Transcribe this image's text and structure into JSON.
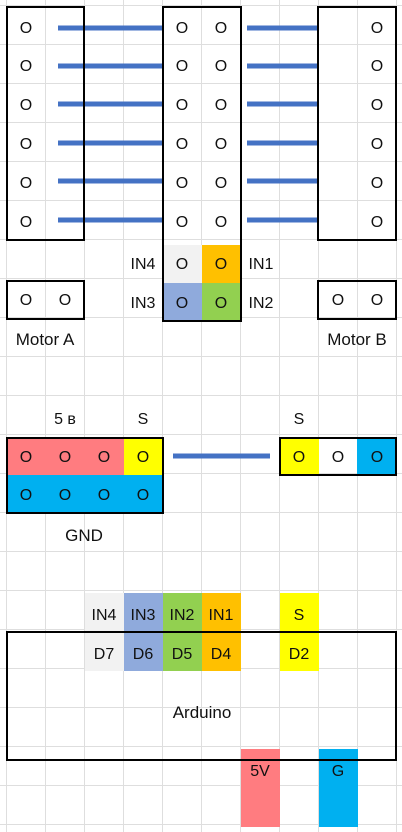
{
  "colors": {
    "wire": "#4472c4",
    "in4": "#f2f2f2",
    "in3": "#8faadc",
    "in2": "#92d050",
    "in1": "#ffc000",
    "signal": "#ffff00",
    "power": "#ff7c80",
    "ground": "#00b0f0",
    "outline": "#000000"
  },
  "driver": {
    "pin_glyph": "O",
    "row_labels": {
      "in4": "IN4",
      "in1": "IN1",
      "in3": "IN3",
      "in2": "IN2"
    }
  },
  "motor_a": {
    "label": "Motor A"
  },
  "motor_b": {
    "label": "Motor B"
  },
  "sensor": {
    "label_5v": "5 в",
    "label_s_left": "S",
    "label_s_right": "S",
    "label_gnd": "GND"
  },
  "arduino": {
    "label": "Arduino",
    "header_labels": [
      "IN4",
      "IN3",
      "IN2",
      "IN1",
      "S"
    ],
    "pin_labels": [
      "D7",
      "D6",
      "D5",
      "D4",
      "D2"
    ],
    "power_labels": {
      "vcc": "5V",
      "gnd": "G"
    }
  }
}
